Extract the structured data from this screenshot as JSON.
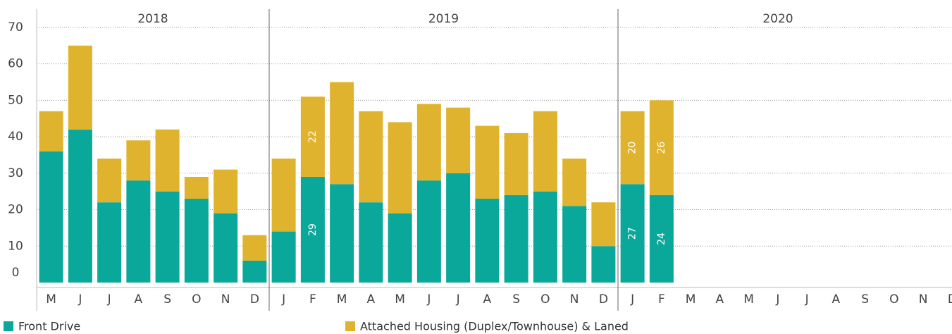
{
  "chart_data": {
    "type": "stacked_bar",
    "groups": [
      {
        "label": "2018",
        "count": 8
      },
      {
        "label": "2019",
        "count": 12
      },
      {
        "label": "2020",
        "count": 12
      }
    ],
    "categories": [
      "M",
      "J",
      "J",
      "A",
      "S",
      "O",
      "N",
      "D",
      "J",
      "F",
      "M",
      "A",
      "M",
      "J",
      "J",
      "A",
      "S",
      "O",
      "N",
      "D",
      "J",
      "F",
      "M",
      "A",
      "M",
      "J",
      "J",
      "A",
      "S",
      "O",
      "N",
      "D"
    ],
    "series": [
      {
        "name": "Front Drive",
        "color": "#0aa89a",
        "values": [
          36,
          42,
          22,
          28,
          25,
          23,
          19,
          6,
          14,
          29,
          27,
          22,
          19,
          28,
          30,
          23,
          24,
          25,
          21,
          10,
          27,
          24,
          null,
          null,
          null,
          null,
          null,
          null,
          null,
          null,
          null,
          null
        ],
        "show_value_labels": [
          false,
          false,
          false,
          false,
          false,
          false,
          false,
          false,
          false,
          true,
          false,
          false,
          false,
          false,
          false,
          false,
          false,
          false,
          false,
          false,
          true,
          true,
          false,
          false,
          false,
          false,
          false,
          false,
          false,
          false,
          false,
          false
        ]
      },
      {
        "name": "Attached Housing (Duplex/Townhouse) & Laned",
        "color": "#e0b32e",
        "values": [
          11,
          23,
          12,
          11,
          17,
          6,
          12,
          7,
          20,
          22,
          28,
          25,
          25,
          21,
          18,
          20,
          17,
          22,
          13,
          12,
          20,
          26,
          null,
          null,
          null,
          null,
          null,
          null,
          null,
          null,
          null,
          null
        ],
        "show_value_labels": [
          false,
          false,
          false,
          false,
          false,
          false,
          false,
          false,
          false,
          true,
          false,
          false,
          false,
          false,
          false,
          false,
          false,
          false,
          false,
          false,
          true,
          true,
          false,
          false,
          false,
          false,
          false,
          false,
          false,
          false,
          false,
          false
        ]
      }
    ],
    "ylim": [
      0,
      75
    ],
    "yticks": [
      0,
      10,
      20,
      30,
      40,
      50,
      60,
      70
    ],
    "grid": true
  }
}
